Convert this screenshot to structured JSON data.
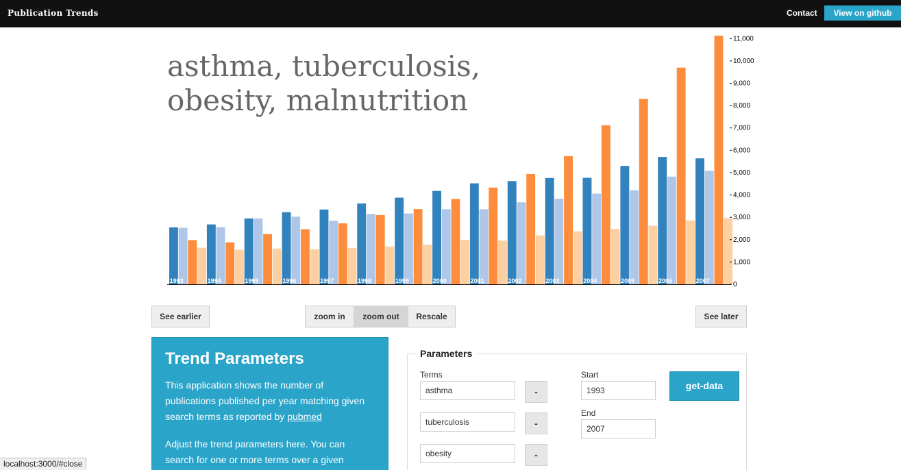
{
  "navbar": {
    "brand": "Publication Trends",
    "contact": "Contact",
    "github": "View on github"
  },
  "chart": {
    "title_lines": [
      "asthma, tuberculosis,",
      "obesity, malnutrition"
    ]
  },
  "chart_data": {
    "type": "bar",
    "title": "asthma, tuberculosis, obesity, malnutrition",
    "categories": [
      "1993",
      "1994",
      "1995",
      "1996",
      "1997",
      "1998",
      "1999",
      "2000",
      "2001",
      "2002",
      "2003",
      "2004",
      "2005",
      "2006",
      "2007"
    ],
    "series": [
      {
        "name": "asthma",
        "color": "#3182bd",
        "values": [
          2550,
          2680,
          2950,
          3230,
          3350,
          3620,
          3880,
          4180,
          4520,
          4620,
          4760,
          4770,
          5300,
          5700,
          5640
        ]
      },
      {
        "name": "tuberculosis",
        "color": "#aec7e8",
        "values": [
          2530,
          2560,
          2950,
          3030,
          2850,
          3150,
          3170,
          3360,
          3360,
          3670,
          3830,
          4060,
          4210,
          4820,
          5080
        ]
      },
      {
        "name": "obesity",
        "color": "#fd8d3c",
        "values": [
          1980,
          1880,
          2250,
          2470,
          2730,
          3100,
          3370,
          3820,
          4330,
          4940,
          5740,
          7120,
          8300,
          9700,
          11130
        ]
      },
      {
        "name": "malnutrition",
        "color": "#fdd0a2",
        "values": [
          1640,
          1550,
          1600,
          1570,
          1630,
          1690,
          1780,
          1990,
          1960,
          2190,
          2370,
          2480,
          2620,
          2860,
          2960
        ]
      }
    ],
    "ylim": [
      0,
      11500
    ],
    "yticks": [
      0,
      1000,
      2000,
      3000,
      4000,
      5000,
      6000,
      7000,
      8000,
      9000,
      10000,
      11000
    ],
    "ytick_labels": [
      "0",
      "1,000",
      "2,000",
      "3,000",
      "4,000",
      "5,000",
      "6,000",
      "7,000",
      "8,000",
      "9,000",
      "10,000",
      "11,000"
    ],
    "xtick_labels": [
      "1993",
      "1994",
      "1995",
      "1996",
      "1997",
      "1998",
      "1999",
      "2000",
      "2001",
      "2002",
      "2003",
      "2004",
      "2005",
      "2006",
      "2007"
    ],
    "ylabel": "",
    "xlabel": "",
    "legend": "none",
    "grid": false
  },
  "controls": {
    "see_earlier": "See earlier",
    "zoom_in": "zoom in",
    "zoom_out": "zoom out",
    "rescale": "Rescale",
    "see_later": "See later"
  },
  "trend_panel": {
    "heading": "Trend Parameters",
    "para1_text": "This application shows the number of publications published per year matching given search terms as reported by ",
    "para1_link": "pubmed",
    "para2": "Adjust the trend parameters here. You can search for one or more terms over a given"
  },
  "params": {
    "legend": "Parameters",
    "terms_label": "Terms",
    "terms": [
      "asthma",
      "tuberculosis",
      "obesity"
    ],
    "remove_label": "-",
    "start_label": "Start",
    "start_value": "1993",
    "end_label": "End",
    "end_value": "2007",
    "get_data": "get-data"
  },
  "statusbar": {
    "url": "localhost:3000/#close"
  }
}
